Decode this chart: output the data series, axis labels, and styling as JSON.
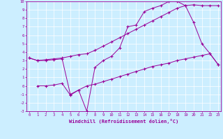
{
  "xlabel": "Windchill (Refroidissement éolien,°C)",
  "bg_color": "#cceeff",
  "line_color": "#990099",
  "x_min": 0,
  "x_max": 23,
  "y_min": -3,
  "y_max": 10,
  "line1_x": [
    0,
    1,
    2,
    3,
    4,
    5,
    6,
    7,
    8,
    9,
    10,
    11,
    12,
    13,
    14,
    15,
    16,
    17,
    18,
    19,
    20,
    21,
    22,
    23
  ],
  "line1_y": [
    3.3,
    3.0,
    3.1,
    3.2,
    3.3,
    3.5,
    3.7,
    3.8,
    4.2,
    4.7,
    5.2,
    5.7,
    6.2,
    6.7,
    7.2,
    7.7,
    8.2,
    8.7,
    9.2,
    9.5,
    9.6,
    9.5,
    9.5,
    9.5
  ],
  "line2_x": [
    0,
    1,
    2,
    3,
    4,
    5,
    6,
    7,
    8,
    9,
    10,
    11,
    12,
    13,
    14,
    15,
    16,
    17,
    18,
    19,
    20,
    21,
    22,
    23
  ],
  "line2_y": [
    3.3,
    3.0,
    3.0,
    3.1,
    3.2,
    -1.0,
    -0.5,
    -3.0,
    2.2,
    3.0,
    3.5,
    4.5,
    7.0,
    7.2,
    8.8,
    9.2,
    9.5,
    10.0,
    10.0,
    9.5,
    7.5,
    5.0,
    3.8,
    2.5
  ],
  "line3_x": [
    1,
    2,
    3,
    4,
    5,
    6,
    7,
    8,
    9,
    10,
    11,
    12,
    13,
    14,
    15,
    16,
    17,
    18,
    19,
    20,
    21,
    22,
    23
  ],
  "line3_y": [
    0.0,
    0.0,
    0.1,
    0.3,
    -1.1,
    -0.5,
    0.0,
    0.2,
    0.5,
    0.8,
    1.1,
    1.4,
    1.7,
    2.0,
    2.3,
    2.5,
    2.7,
    3.0,
    3.2,
    3.4,
    3.6,
    3.8,
    2.5
  ]
}
